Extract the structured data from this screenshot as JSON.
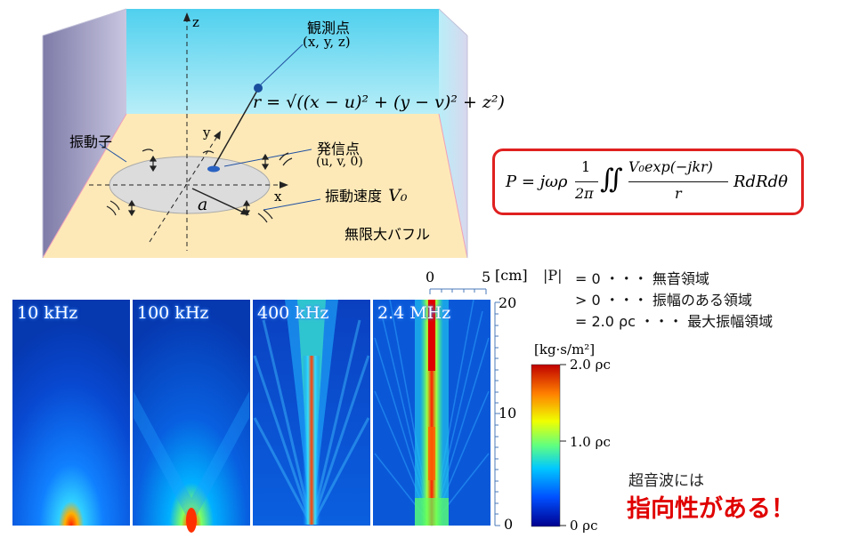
{
  "diagram": {
    "observation_point": {
      "label": "観測点",
      "coords": "(x, y, z)"
    },
    "distance_formula": "r = √((x − u)² + (y − v)² + z²)",
    "axes": {
      "x": "x",
      "y": "y",
      "z": "z"
    },
    "vibrator_label": "振動子",
    "source_point": {
      "label": "発信点",
      "coords": "(u, v, 0)"
    },
    "radius_label": "a",
    "velocity_label": "振動速度",
    "velocity_symbol": "V₀",
    "baffle_label": "無限大バフル"
  },
  "pressure_formula": {
    "lhs": "P = jωρ",
    "frac_num": "1",
    "frac_den": "2π",
    "integral": "∬",
    "integrand_num": "V₀exp(−jkr)",
    "integrand_den": "r",
    "rhs": "RdRdθ"
  },
  "panels": [
    {
      "label": "10 kHz"
    },
    {
      "label": "100 kHz"
    },
    {
      "label": "400 kHz"
    },
    {
      "label": "2.4 MHz"
    }
  ],
  "scale": {
    "horizontal": {
      "min": "0",
      "max": "5",
      "unit": "[cm]"
    },
    "vertical": {
      "top": "20",
      "mid": "10",
      "bottom": "0"
    }
  },
  "p_legend": {
    "symbol": "|P|",
    "line1": "= 0 ・・・ 無音領域",
    "line2": "> 0 ・・・ 振幅のある領域",
    "line3": "= 2.0 ρc ・・・ 最大振幅領域"
  },
  "colorbar": {
    "unit": "[kg·s/m²]",
    "max": "2.0 ρc",
    "mid": "1.0 ρc",
    "min": "0 ρc",
    "colors": [
      "#00008f",
      "#0050ff",
      "#00c8ff",
      "#60ff80",
      "#f0ff00",
      "#ff8000",
      "#c00000"
    ]
  },
  "conclusion": {
    "line1": "超音波には",
    "line2": "指向性がある！",
    "color": "#e00000"
  }
}
